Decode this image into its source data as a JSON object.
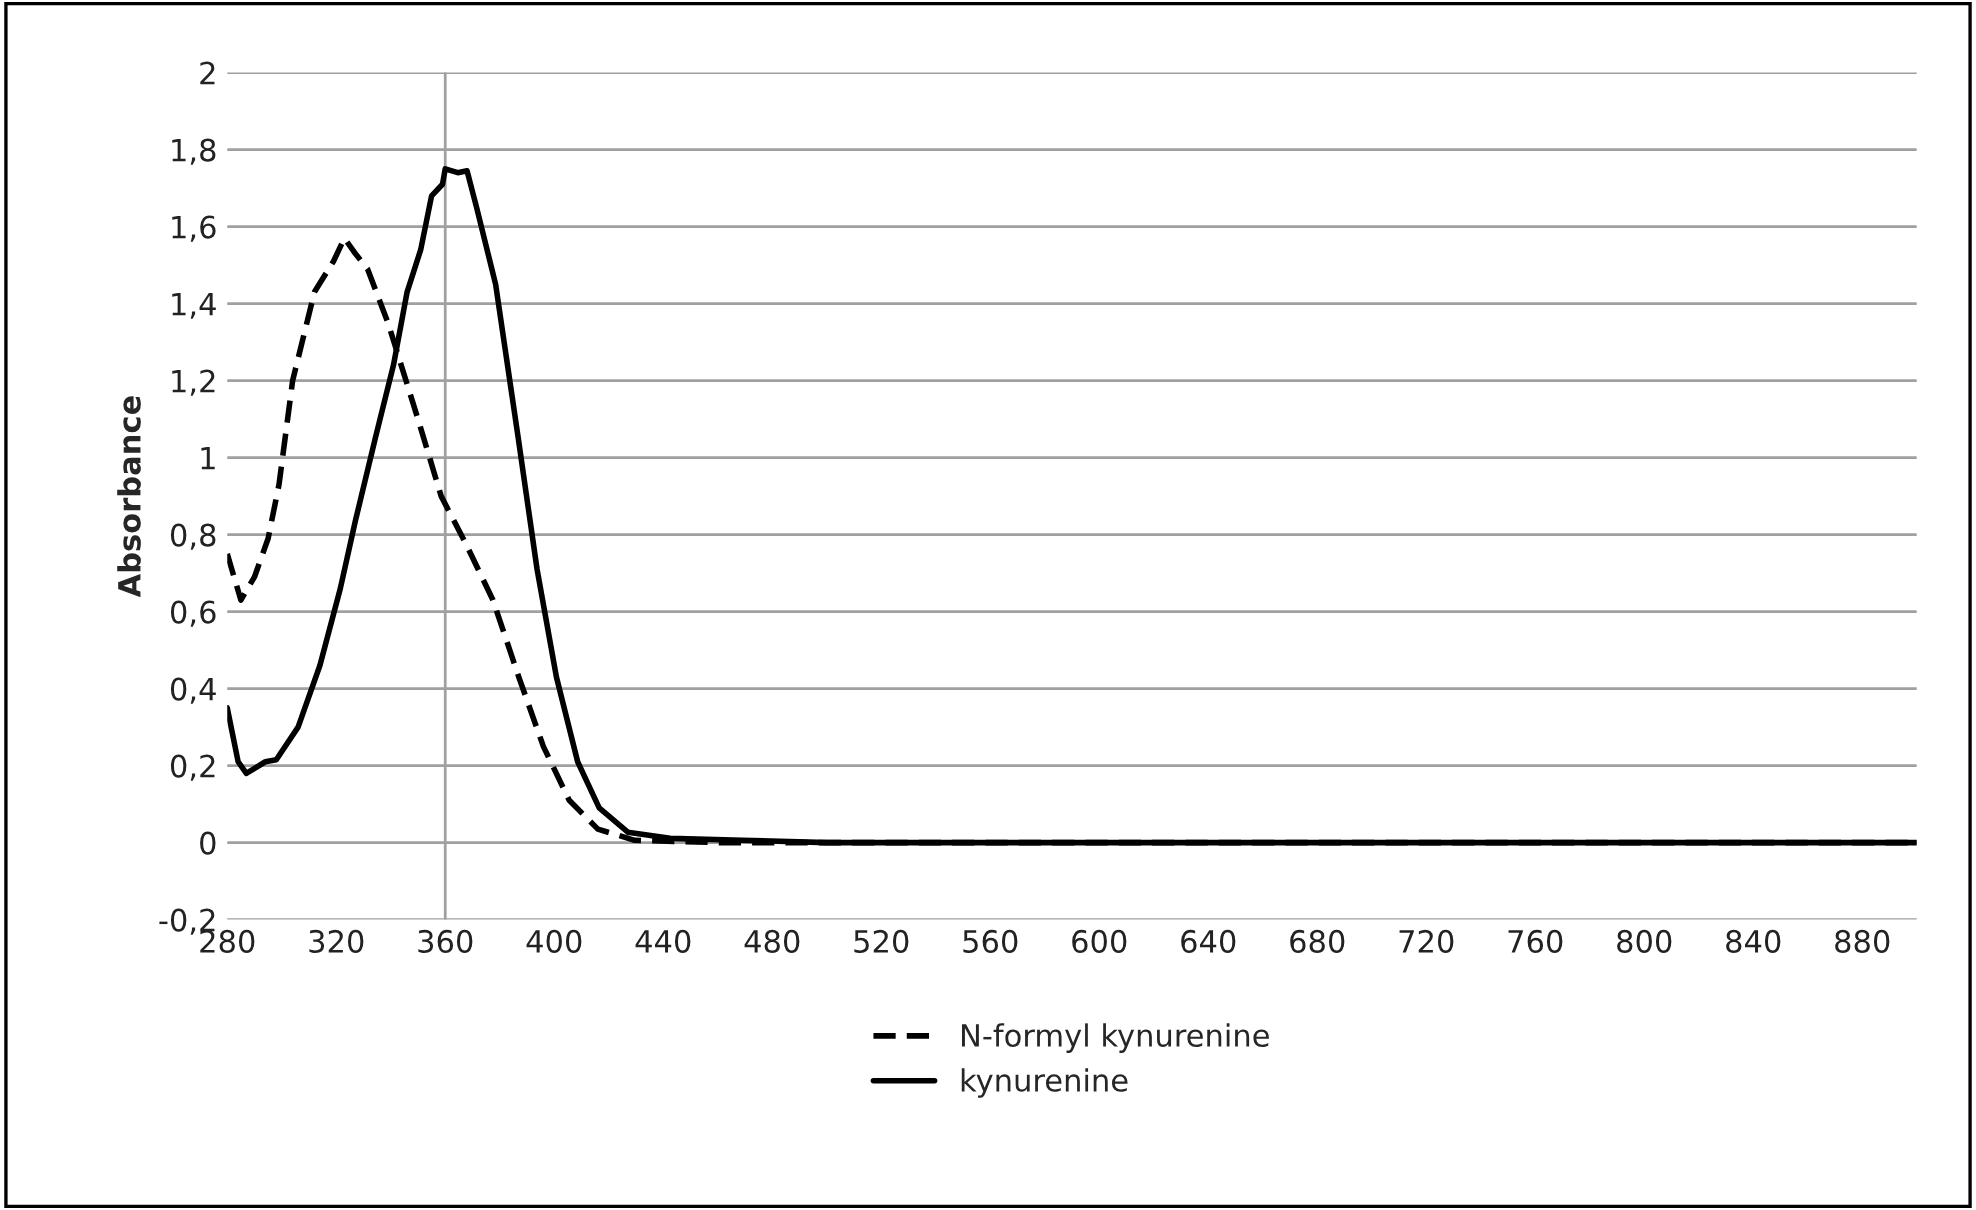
{
  "chart_data": {
    "type": "line",
    "ylabel": "Absorbance",
    "xlim": [
      280,
      900
    ],
    "xticks": [
      280,
      320,
      360,
      400,
      440,
      480,
      520,
      560,
      600,
      640,
      680,
      720,
      760,
      800,
      840,
      880
    ],
    "ylim": [
      -0.2,
      2
    ],
    "yticks": [
      {
        "value": -0.2,
        "label": "-0,2"
      },
      0,
      {
        "value": 0.2,
        "label": "0,2"
      },
      {
        "value": 0.4,
        "label": "0,4"
      },
      {
        "value": 0.6,
        "label": "0,6"
      },
      {
        "value": 0.8,
        "label": "0,8"
      },
      1,
      {
        "value": 1.2,
        "label": "1,2"
      },
      {
        "value": 1.4,
        "label": "1,4"
      },
      {
        "value": 1.6,
        "label": "1,6"
      },
      {
        "value": 1.8,
        "label": "1,8"
      },
      2
    ],
    "grid": "y",
    "legend": "bottom",
    "ref_lines": [
      {
        "axis": "x",
        "value": 360,
        "color": "#a0a0a0"
      }
    ],
    "series": [
      {
        "name": "N-formyl kynurenine",
        "color": "#000000",
        "line_style": "dashed",
        "x": [
          280,
          285,
          290,
          295,
          299,
          304,
          312,
          319,
          323,
          327,
          331.5,
          339,
          350,
          358.5,
          368,
          377.5,
          387,
          396,
          405.5,
          416,
          429.5,
          460,
          600,
          900
        ],
        "values": [
          0.75,
          0.63,
          0.69,
          0.79,
          0.93,
          1.2,
          1.43,
          1.51,
          1.57,
          1.53,
          1.49,
          1.35,
          1.1,
          0.9,
          0.77,
          0.63,
          0.43,
          0.25,
          0.11,
          0.035,
          0.006,
          0,
          0,
          0
        ]
      },
      {
        "name": "kynurenine",
        "color": "#000000",
        "line_style": "solid",
        "x": [
          280,
          284,
          287,
          294,
          298,
          306,
          314,
          321.5,
          327,
          334.5,
          341,
          346,
          351,
          355,
          359,
          360,
          364.6,
          368,
          371.5,
          378.5,
          386.7,
          393.7,
          400.8,
          408.6,
          416.5,
          427,
          442.5,
          469,
          500,
          700,
          900
        ],
        "values": [
          0.35,
          0.21,
          0.18,
          0.21,
          0.215,
          0.3,
          0.46,
          0.66,
          0.835,
          1.055,
          1.24,
          1.43,
          1.54,
          1.68,
          1.71,
          1.75,
          1.74,
          1.745,
          1.65,
          1.45,
          1.055,
          0.71,
          0.43,
          0.21,
          0.09,
          0.027,
          0.011,
          0.006,
          0,
          0,
          0
        ]
      }
    ]
  }
}
